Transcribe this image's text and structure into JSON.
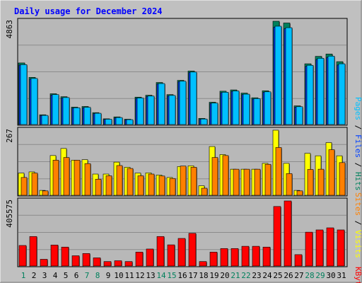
{
  "chart_data": [
    {
      "type": "bar",
      "title": "Daily usage for December 2024",
      "categories": [
        "1",
        "2",
        "3",
        "4",
        "5",
        "6",
        "7",
        "8",
        "9",
        "10",
        "11",
        "12",
        "13",
        "14",
        "15",
        "16",
        "17",
        "18",
        "19",
        "20",
        "21",
        "22",
        "23",
        "24",
        "25",
        "26",
        "27",
        "28",
        "29",
        "30",
        "31"
      ],
      "weekend_days": [
        "1",
        "7",
        "8",
        "14",
        "15",
        "21",
        "22",
        "28",
        "29"
      ],
      "series": [
        {
          "name": "Pages",
          "values": [
            2820,
            2170,
            430,
            1410,
            1270,
            790,
            810,
            530,
            250,
            330,
            230,
            1250,
            1340,
            1930,
            1370,
            2040,
            2470,
            260,
            1010,
            1520,
            1580,
            1430,
            1220,
            1540,
            4630,
            4560,
            840,
            2790,
            3120,
            3220,
            2860
          ]
        },
        {
          "name": "Files",
          "values": [
            2800,
            2140,
            420,
            1390,
            1250,
            770,
            790,
            510,
            240,
            310,
            220,
            1230,
            1320,
            1910,
            1350,
            2020,
            2450,
            240,
            990,
            1500,
            1560,
            1410,
            1200,
            1520,
            4580,
            4510,
            820,
            2740,
            3060,
            3160,
            2800
          ]
        },
        {
          "name": "Hits",
          "values": [
            2900,
            2220,
            460,
            1450,
            1310,
            820,
            850,
            560,
            270,
            360,
            250,
            1290,
            1380,
            1980,
            1410,
            2080,
            2520,
            290,
            1050,
            1570,
            1630,
            1480,
            1260,
            1590,
            4863,
            4780,
            880,
            2860,
            3210,
            3320,
            2960
          ]
        }
      ],
      "ylabel": "Pages / Files / Hits",
      "ymax_label": "4863",
      "ylim": [
        0,
        4863
      ]
    },
    {
      "type": "bar",
      "categories": [
        "1",
        "2",
        "3",
        "4",
        "5",
        "6",
        "7",
        "8",
        "9",
        "10",
        "11",
        "12",
        "13",
        "14",
        "15",
        "16",
        "17",
        "18",
        "19",
        "20",
        "21",
        "22",
        "23",
        "24",
        "25",
        "26",
        "27",
        "28",
        "29",
        "30",
        "31"
      ],
      "series": [
        {
          "name": "Visits",
          "values": [
            91,
            96,
            20,
            163,
            192,
            144,
            146,
            87,
            87,
            136,
            115,
            91,
            92,
            83,
            73,
            118,
            121,
            39,
            200,
            167,
            107,
            107,
            107,
            131,
            267,
            131,
            20,
            172,
            162,
            216,
            162
          ]
        },
        {
          "name": "Sites",
          "values": [
            73,
            91,
            18,
            144,
            155,
            144,
            130,
            66,
            80,
            122,
            110,
            80,
            87,
            79,
            69,
            120,
            115,
            29,
            155,
            163,
            107,
            107,
            107,
            127,
            196,
            89,
            18,
            106,
            107,
            187,
            134
          ]
        }
      ],
      "ylabel": "Sites / Visits",
      "ymax_label": "267",
      "ylim": [
        0,
        267
      ]
    },
    {
      "type": "bar",
      "categories": [
        "1",
        "2",
        "3",
        "4",
        "5",
        "6",
        "7",
        "8",
        "9",
        "10",
        "11",
        "12",
        "13",
        "14",
        "15",
        "16",
        "17",
        "18",
        "19",
        "20",
        "21",
        "22",
        "23",
        "24",
        "25",
        "26",
        "27",
        "28",
        "29",
        "30",
        "31"
      ],
      "series": [
        {
          "name": "KBytes",
          "values": [
            128000,
            184000,
            42000,
            131000,
            118000,
            64000,
            78000,
            51000,
            28000,
            33000,
            28000,
            87000,
            106000,
            184000,
            132000,
            172000,
            204000,
            28000,
            87000,
            109000,
            109000,
            123000,
            123000,
            118000,
            371000,
            405575,
            71000,
            211000,
            225000,
            238000,
            225000
          ]
        }
      ],
      "ylabel": "KBytes",
      "ymax_label": "405575",
      "ylim": [
        0,
        405575
      ]
    }
  ],
  "colors": {
    "hits": "#00805c",
    "files": "#0040ff",
    "pages": "#00c0ff",
    "visits": "#ffff00",
    "sites": "#ff8000",
    "kbytes": "#ff0000",
    "title": "#0000ff",
    "weekday": "#000000",
    "weekend": "#00805c"
  }
}
